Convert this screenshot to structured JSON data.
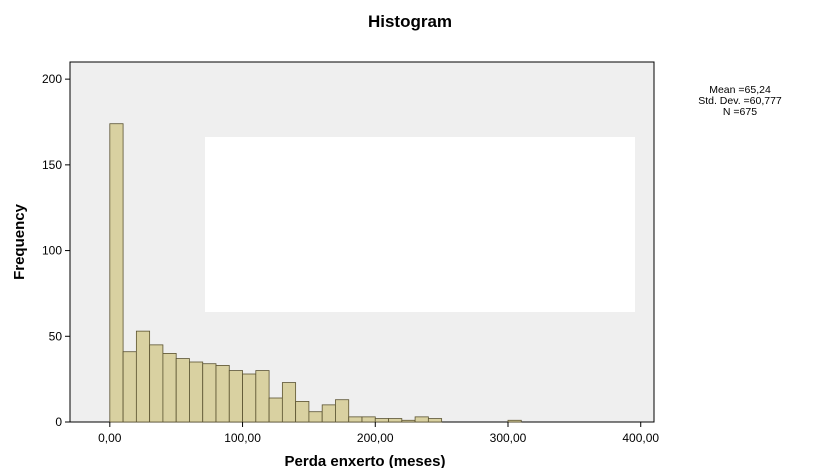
{
  "chart_data": {
    "type": "bar",
    "title": "Histogram",
    "xlabel": "Perda enxerto (meses)",
    "ylabel": "Frequency",
    "xlim": [
      -30,
      410
    ],
    "ylim": [
      0,
      210
    ],
    "x_ticks": [
      {
        "value": 0,
        "label": "0,00"
      },
      {
        "value": 100,
        "label": "100,00"
      },
      {
        "value": 200,
        "label": "200,00"
      },
      {
        "value": 300,
        "label": "300,00"
      },
      {
        "value": 400,
        "label": "400,00"
      }
    ],
    "y_ticks": [
      {
        "value": 0,
        "label": "0"
      },
      {
        "value": 50,
        "label": "50"
      },
      {
        "value": 100,
        "label": "100"
      },
      {
        "value": 150,
        "label": "150"
      },
      {
        "value": 200,
        "label": "200"
      }
    ],
    "bin_width": 10,
    "bins": [
      {
        "start": 0,
        "value": 174
      },
      {
        "start": 10,
        "value": 41
      },
      {
        "start": 20,
        "value": 53
      },
      {
        "start": 30,
        "value": 45
      },
      {
        "start": 40,
        "value": 40
      },
      {
        "start": 50,
        "value": 37
      },
      {
        "start": 60,
        "value": 35
      },
      {
        "start": 70,
        "value": 34
      },
      {
        "start": 80,
        "value": 33
      },
      {
        "start": 90,
        "value": 30
      },
      {
        "start": 100,
        "value": 28
      },
      {
        "start": 110,
        "value": 30
      },
      {
        "start": 120,
        "value": 14
      },
      {
        "start": 130,
        "value": 23
      },
      {
        "start": 140,
        "value": 12
      },
      {
        "start": 150,
        "value": 6
      },
      {
        "start": 160,
        "value": 10
      },
      {
        "start": 170,
        "value": 13
      },
      {
        "start": 180,
        "value": 3
      },
      {
        "start": 190,
        "value": 3
      },
      {
        "start": 200,
        "value": 2
      },
      {
        "start": 210,
        "value": 2
      },
      {
        "start": 220,
        "value": 1
      },
      {
        "start": 230,
        "value": 3
      },
      {
        "start": 240,
        "value": 2
      },
      {
        "start": 300,
        "value": 1
      }
    ],
    "stats": [
      "Mean =65,24",
      "Std. Dev. =60,777",
      "N =675"
    ],
    "grid": false,
    "legend": "none",
    "colors": {
      "bar_fill": "#d9d1a1",
      "bar_stroke": "#5a5230",
      "plot_background": "#efefef",
      "occluding_box": "#ffffff"
    }
  }
}
